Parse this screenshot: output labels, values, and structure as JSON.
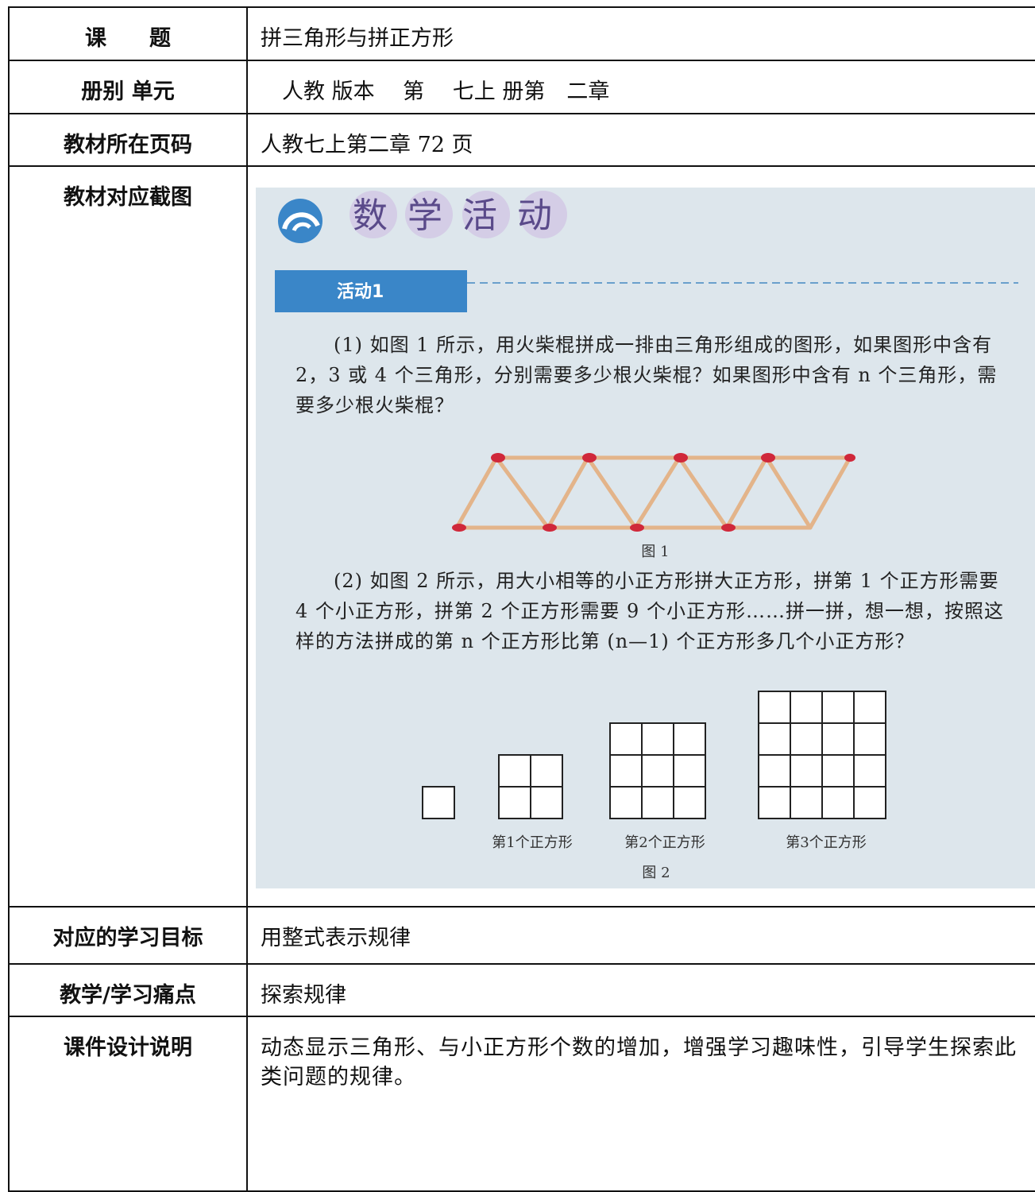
{
  "table": {
    "rows": [
      {
        "label": "课　　题",
        "content": "拼三角形与拼正方形"
      },
      {
        "label": "册别 单元",
        "content": "　人教 版本　 第　 七上 册第　二章"
      },
      {
        "label": "教材所在页码",
        "content": "人教七上第二章 72 页"
      },
      {
        "label": "教材对应截图"
      },
      {
        "label": "对应的学习目标",
        "content": "用整式表示规律"
      },
      {
        "label": "教学/学习痛点",
        "content": "探索规律"
      },
      {
        "label": "课件设计说明",
        "content": "动态显示三角形、与小正方形个数的增加，增强学习趣味性，引导学生探索此类问题的规律。"
      }
    ]
  },
  "textbook_image": {
    "heading": "数学活动",
    "activity": "活动1",
    "paragraph_1": "(1) 如图 1 所示，用火柴棍拼成一排由三角形组成的图形，如果图形中含有 2，3 或 4 个三角形，分别需要多少根火柴棍？如果图形中含有 n 个三角形，需要多少根火柴棍？",
    "figure_1_caption": "图 1",
    "paragraph_2": "(2) 如图 2 所示，用大小相等的小正方形拼大正方形，拼第 1 个正方形需要 4 个小正方形，拼第 2 个正方形需要 9 个小正方形……拼一拼，想一想，按照这样的方法拼成的第 n 个正方形比第 (n—1) 个正方形多几个小正方形？",
    "figure_2_labels": [
      "第1个正方形",
      "第2个正方形",
      "第3个正方形"
    ],
    "figure_2_caption": "图 2"
  }
}
